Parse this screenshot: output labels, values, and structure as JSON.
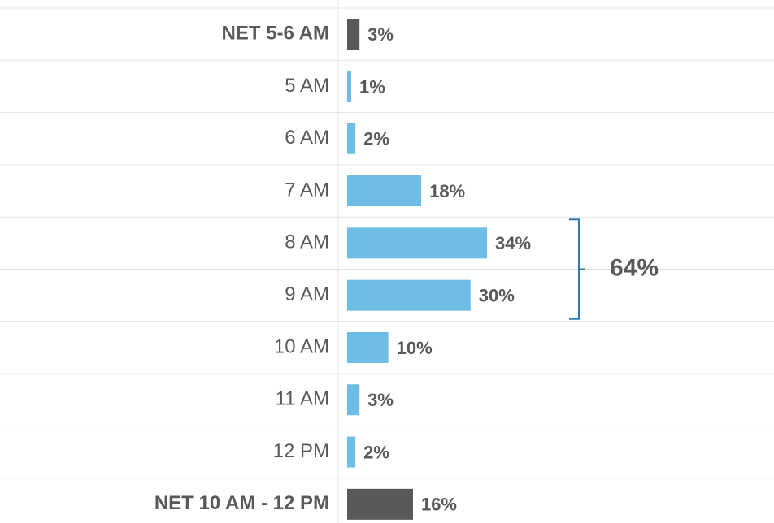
{
  "chart_data": {
    "type": "bar",
    "orientation": "horizontal",
    "categories": [
      "NET 5-6 AM",
      "5 AM",
      "6 AM",
      "7 AM",
      "8 AM",
      "9 AM",
      "10 AM",
      "11 AM",
      "12 PM",
      "NET 10 AM - 12 PM"
    ],
    "values": [
      3,
      1,
      2,
      18,
      34,
      30,
      10,
      3,
      2,
      16
    ],
    "value_labels": [
      "3%",
      "1%",
      "2%",
      "18%",
      "34%",
      "30%",
      "10%",
      "3%",
      "2%",
      "16%"
    ],
    "colors": [
      "#58595b",
      "#6ebde4",
      "#6ebde4",
      "#6ebde4",
      "#6ebde4",
      "#6ebde4",
      "#6ebde4",
      "#6ebde4",
      "#6ebde4",
      "#58595b"
    ],
    "bold": [
      true,
      false,
      false,
      false,
      false,
      false,
      false,
      false,
      false,
      true
    ],
    "xlim": [
      0,
      100
    ],
    "annotations": [
      {
        "value": 64,
        "label": "64%",
        "from": "8 AM",
        "to": "9 AM",
        "color": "#2e7ab0"
      }
    ]
  }
}
